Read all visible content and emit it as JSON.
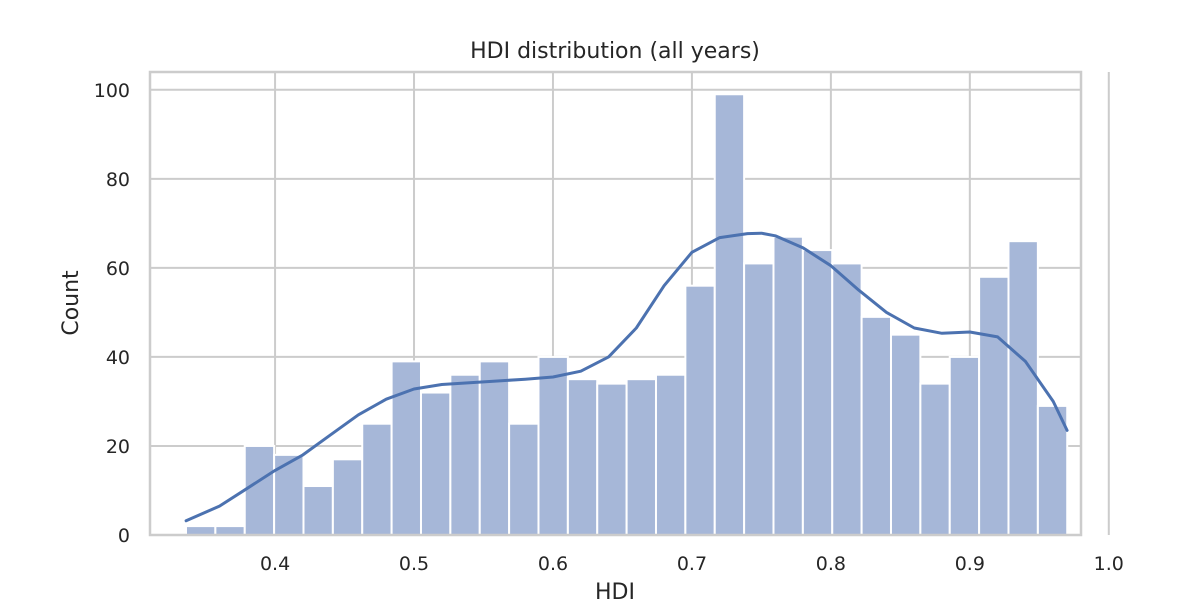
{
  "chart_data": {
    "type": "bar",
    "title": "HDI distribution (all years)",
    "xlabel": "HDI",
    "ylabel": "Count",
    "xlim": [
      0.31,
      0.98
    ],
    "ylim": [
      0,
      104
    ],
    "xticks": [
      "0.4",
      "0.5",
      "0.6",
      "0.7",
      "0.8",
      "0.9",
      "1.0"
    ],
    "yticks": [
      "0",
      "20",
      "40",
      "60",
      "80",
      "100"
    ],
    "grid": true,
    "bin_start": 0.3359,
    "bin_width": 0.02114,
    "values": [
      2,
      2,
      20,
      18,
      11,
      17,
      25,
      39,
      32,
      36,
      39,
      25,
      40,
      35,
      34,
      35,
      36,
      56,
      99,
      61,
      67,
      64,
      61,
      49,
      45,
      34,
      40,
      58,
      66,
      29
    ],
    "kde": {
      "x": [
        0.336,
        0.36,
        0.38,
        0.4,
        0.42,
        0.44,
        0.46,
        0.48,
        0.5,
        0.52,
        0.54,
        0.56,
        0.58,
        0.6,
        0.62,
        0.64,
        0.66,
        0.68,
        0.7,
        0.72,
        0.74,
        0.75,
        0.76,
        0.78,
        0.8,
        0.82,
        0.84,
        0.86,
        0.88,
        0.9,
        0.92,
        0.94,
        0.96,
        0.97
      ],
      "y": [
        3.2,
        6.5,
        10.5,
        14.5,
        18.0,
        22.5,
        27.0,
        30.5,
        32.8,
        33.8,
        34.2,
        34.6,
        35.0,
        35.5,
        36.8,
        40.0,
        46.5,
        56.0,
        63.5,
        66.8,
        67.7,
        67.8,
        67.2,
        64.5,
        60.5,
        55.0,
        50.0,
        46.5,
        45.3,
        45.6,
        44.5,
        39.0,
        30.0,
        23.5
      ]
    },
    "colors": {
      "bar": "#a6b7d8",
      "line": "#4c72b0",
      "grid": "#cccccc",
      "frame": "#cccccc",
      "text": "#262626"
    }
  }
}
